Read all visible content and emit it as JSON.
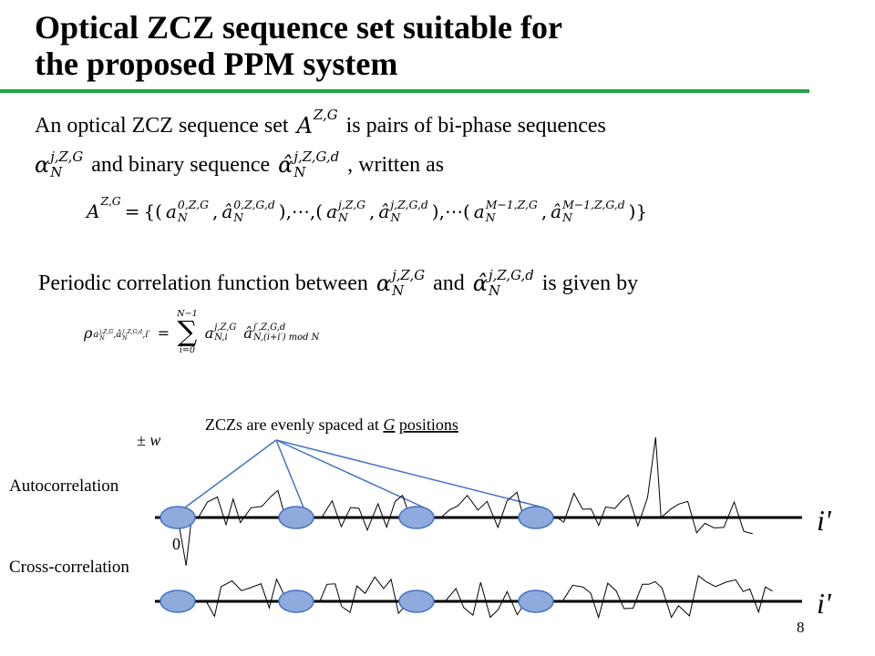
{
  "title": [
    "Optical ZCZ sequence set suitable for",
    "the proposed PPM system"
  ],
  "lines": [
    [
      "An optical ZCZ sequence set",
      {
        "base": "A",
        "sup": "Z,G"
      },
      "is pairs of bi-phase sequences"
    ],
    [
      {
        "base": "α",
        "sup": "j,Z,G",
        "sub": "N"
      },
      "and binary sequence",
      {
        "base": "α̂",
        "sup": "j,Z,G,d",
        "sub": "N"
      },
      ", written as"
    ],
    [
      "Periodic correlation function between",
      {
        "base": "α",
        "sup": "j,Z,G",
        "sub": "N"
      },
      "and",
      {
        "base": "α̂",
        "sup": "j,Z,G,d",
        "sub": "N"
      },
      "is given by"
    ]
  ],
  "equation_set": [
    {
      "base": "A",
      "sup": "Z,G"
    },
    "=",
    "{(",
    {
      "base": "a",
      "sup": "0,Z,G",
      "sub": "N"
    },
    ",",
    {
      "base": "â",
      "sup": "0,Z,G,d",
      "sub": "N"
    },
    "),⋯,(",
    {
      "base": "a",
      "sup": "j,Z,G",
      "sub": "N"
    },
    ",",
    {
      "base": "â",
      "sup": "j,Z,G,d",
      "sub": "N"
    },
    "),⋯(",
    {
      "base": "a",
      "sup": "M−1,Z,G",
      "sub": "N"
    },
    ",",
    {
      "base": "â",
      "sup": "M−1,Z,G,d",
      "sub": "N"
    },
    ")}"
  ],
  "equation_correlation": [
    {
      "base": "ρ",
      "sub": [
        {
          "base": "a",
          "sup": "j,Z,G",
          "sub": "N"
        },
        ",",
        {
          "base": "â",
          "sup": "j′,Z,G,d",
          "sub": "N"
        },
        ",i′"
      ]
    },
    "=",
    {
      "base": "∑",
      "over": "N−1",
      "under": "i=0"
    },
    {
      "base": "a",
      "sup": "j,Z,G",
      "sub": "N,i"
    },
    {
      "base": "â",
      "sup": "j′,Z,G,d",
      "sub": "N,(i+i′) mod N"
    }
  ],
  "diagram": {
    "annotation": {
      "text": "ZCZs are evenly spaced at",
      "symbol": "G",
      "tail": "positions"
    },
    "peak_label": "± w",
    "autocorrelation_label": "Autocorrelation",
    "crosscorrelation_label": "Cross-correlation",
    "origin_label": "0",
    "axis_label": "i'"
  },
  "page_number": "8"
}
